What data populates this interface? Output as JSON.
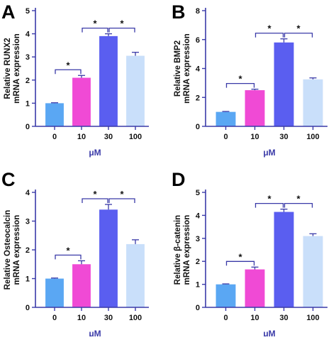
{
  "colors": {
    "axis": "#3a3aa8",
    "bars": [
      "#5aa7f3",
      "#f04ad5",
      "#5a5ef0",
      "#c9dffa"
    ]
  },
  "chart_data": [
    {
      "type": "bar",
      "panel": "A",
      "categories": [
        "0",
        "10",
        "30",
        "100"
      ],
      "values": [
        1.0,
        2.1,
        3.9,
        3.05
      ],
      "errors": [
        0.02,
        0.1,
        0.1,
        0.15
      ],
      "ylabel": [
        "Relative RUNX2",
        "mRNA expression"
      ],
      "xlabel": "μM",
      "ylim": [
        0,
        5
      ],
      "yticks": [
        0,
        1,
        2,
        3,
        4,
        5
      ],
      "significance": [
        {
          "from": 0,
          "to": 1,
          "label": "*"
        },
        {
          "from": 1,
          "to": 2,
          "label": "*"
        },
        {
          "from": 2,
          "to": 3,
          "label": "*"
        }
      ]
    },
    {
      "type": "bar",
      "panel": "B",
      "categories": [
        "0",
        "10",
        "30",
        "100"
      ],
      "values": [
        1.0,
        2.5,
        5.8,
        3.25
      ],
      "errors": [
        0.03,
        0.07,
        0.25,
        0.1
      ],
      "ylabel": [
        "Relative BMP2",
        "mRNA expression"
      ],
      "xlabel": "μM",
      "ylim": [
        0,
        8
      ],
      "yticks": [
        0,
        2,
        4,
        6,
        8
      ],
      "significance": [
        {
          "from": 0,
          "to": 1,
          "label": "*"
        },
        {
          "from": 1,
          "to": 2,
          "label": "*"
        },
        {
          "from": 2,
          "to": 3,
          "label": "*"
        }
      ]
    },
    {
      "type": "bar",
      "panel": "C",
      "categories": [
        "0",
        "10",
        "30",
        "100"
      ],
      "values": [
        1.0,
        1.5,
        3.4,
        2.2
      ],
      "errors": [
        0.02,
        0.12,
        0.18,
        0.15
      ],
      "ylabel": [
        "Relative Osteocalcin",
        "mRNA expression"
      ],
      "xlabel": "μM",
      "ylim": [
        0,
        4
      ],
      "yticks": [
        0,
        1,
        2,
        3,
        4
      ],
      "significance": [
        {
          "from": 0,
          "to": 1,
          "label": "*"
        },
        {
          "from": 1,
          "to": 2,
          "label": "*"
        },
        {
          "from": 2,
          "to": 3,
          "label": "*"
        }
      ]
    },
    {
      "type": "bar",
      "panel": "D",
      "categories": [
        "0",
        "10",
        "30",
        "100"
      ],
      "values": [
        1.0,
        1.65,
        4.15,
        3.1
      ],
      "errors": [
        0.02,
        0.1,
        0.12,
        0.1
      ],
      "ylabel": [
        "Relative β-catenin",
        "mRNA expression"
      ],
      "xlabel": "μM",
      "ylim": [
        0,
        5
      ],
      "yticks": [
        0,
        1,
        2,
        3,
        4,
        5
      ],
      "significance": [
        {
          "from": 0,
          "to": 1,
          "label": "*"
        },
        {
          "from": 1,
          "to": 2,
          "label": "*"
        },
        {
          "from": 2,
          "to": 3,
          "label": "*"
        }
      ]
    }
  ]
}
